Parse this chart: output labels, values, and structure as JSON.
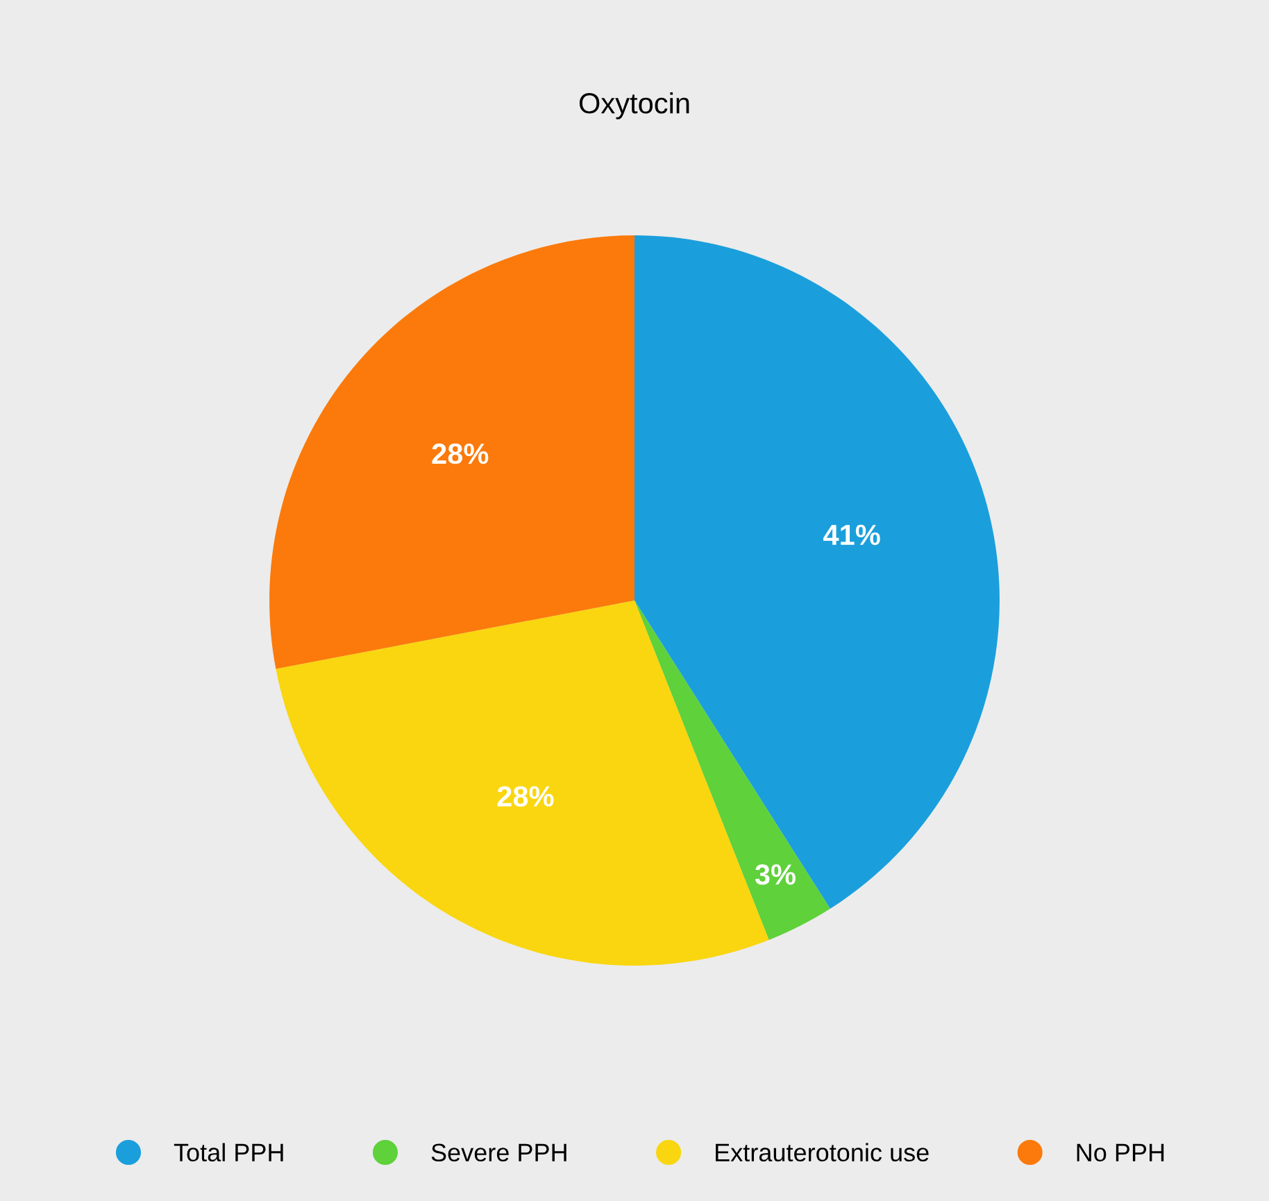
{
  "chart_data": {
    "type": "pie",
    "title": "Oxytocin",
    "categories": [
      "Total PPH",
      "Severe PPH",
      "Extrauterotonic use",
      "No PPH"
    ],
    "values": [
      41,
      3,
      28,
      28
    ],
    "colors": [
      "#1a9fdc",
      "#5fd13a",
      "#f9d60f",
      "#fb7a0b"
    ],
    "value_labels": [
      "41%",
      "3%",
      "28%",
      "28%"
    ],
    "legend": "bottom"
  }
}
